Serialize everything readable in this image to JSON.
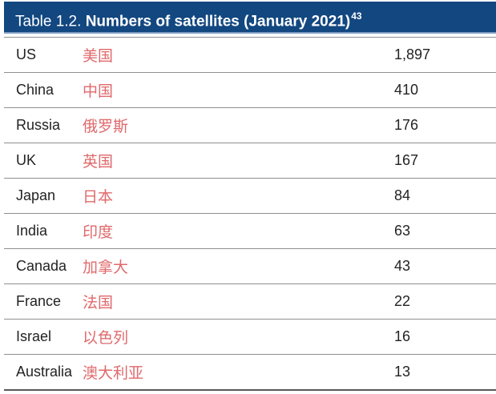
{
  "header": {
    "title_prefix": "Table 1.2.",
    "title_bold": "Numbers of satellites (January 2021)",
    "title_superscript": "43",
    "background_color": "#124780",
    "text_color": "#FFFFFF"
  },
  "table": {
    "rows": [
      {
        "country_en": "US",
        "country_zh": "美国",
        "value": "1,897"
      },
      {
        "country_en": "China",
        "country_zh": "中国",
        "value": "410"
      },
      {
        "country_en": "Russia",
        "country_zh": "俄罗斯",
        "value": "176"
      },
      {
        "country_en": "UK",
        "country_zh": "英国",
        "value": "167"
      },
      {
        "country_en": "Japan",
        "country_zh": "日本",
        "value": "84"
      },
      {
        "country_en": "India",
        "country_zh": "印度",
        "value": "63"
      },
      {
        "country_en": "Canada",
        "country_zh": "加拿大",
        "value": "43"
      },
      {
        "country_en": "France",
        "country_zh": "法国",
        "value": "22"
      },
      {
        "country_en": "Israel",
        "country_zh": "以色列",
        "value": "16"
      },
      {
        "country_en": "Australia",
        "country_zh": "澳大利亚",
        "value": "13"
      }
    ],
    "colors": {
      "chinese_text": "#E0696B",
      "english_text": "#232323",
      "separator": "#8F8F8F",
      "bottom_border": "#58585A"
    }
  }
}
